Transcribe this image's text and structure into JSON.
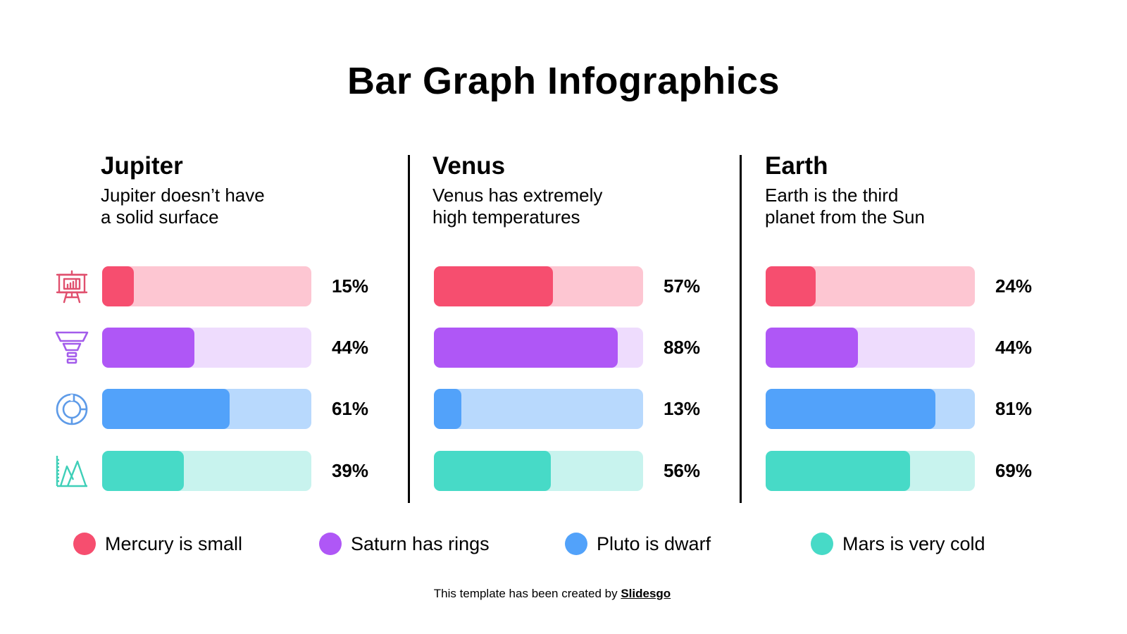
{
  "title": "Bar Graph Infographics",
  "columns": [
    {
      "name": "Jupiter",
      "desc_line1": "Jupiter doesn’t have",
      "desc_line2": "a solid surface",
      "values": [
        "15%",
        "44%",
        "61%",
        "39%"
      ]
    },
    {
      "name": "Venus",
      "desc_line1": "Venus has extremely",
      "desc_line2": "high temperatures",
      "values": [
        "57%",
        "88%",
        "13%",
        "56%"
      ]
    },
    {
      "name": "Earth",
      "desc_line1": "Earth is the third",
      "desc_line2": "planet from the Sun",
      "values": [
        "24%",
        "44%",
        "81%",
        "69%"
      ]
    }
  ],
  "row_icons": [
    "presentation-board-icon",
    "funnel-icon",
    "donut-chart-icon",
    "area-chart-icon"
  ],
  "legend": [
    {
      "label": "Mercury is small",
      "color": "#F64E6F"
    },
    {
      "label": "Saturn has rings",
      "color": "#AF57F6"
    },
    {
      "label": "Pluto is dwarf",
      "color": "#52A2FA"
    },
    {
      "label": "Mars is very cold",
      "color": "#47DAC7"
    }
  ],
  "colors": {
    "mercury": "#F64E6F",
    "mercury_light": "#FDC6D2",
    "saturn": "#AF57F6",
    "saturn_light": "#EEDCFD",
    "pluto": "#52A2FA",
    "pluto_light": "#B8D9FD",
    "mars": "#47DAC7",
    "mars_light": "#C8F3EE"
  },
  "footer": {
    "text": "This template has been created by ",
    "link": "Slidesgo"
  },
  "chart_data": {
    "type": "bar",
    "orientation": "horizontal",
    "title": "Bar Graph Infographics",
    "categories": [
      "Jupiter",
      "Venus",
      "Earth"
    ],
    "series": [
      {
        "name": "Mercury is small",
        "values": [
          15,
          57,
          24
        ]
      },
      {
        "name": "Saturn has rings",
        "values": [
          44,
          88,
          44
        ]
      },
      {
        "name": "Pluto is dwarf",
        "values": [
          61,
          13,
          81
        ]
      },
      {
        "name": "Mars is very cold",
        "values": [
          39,
          56,
          69
        ]
      }
    ],
    "xlim": [
      0,
      100
    ],
    "unit": "%",
    "legend_position": "bottom",
    "grid": false
  }
}
